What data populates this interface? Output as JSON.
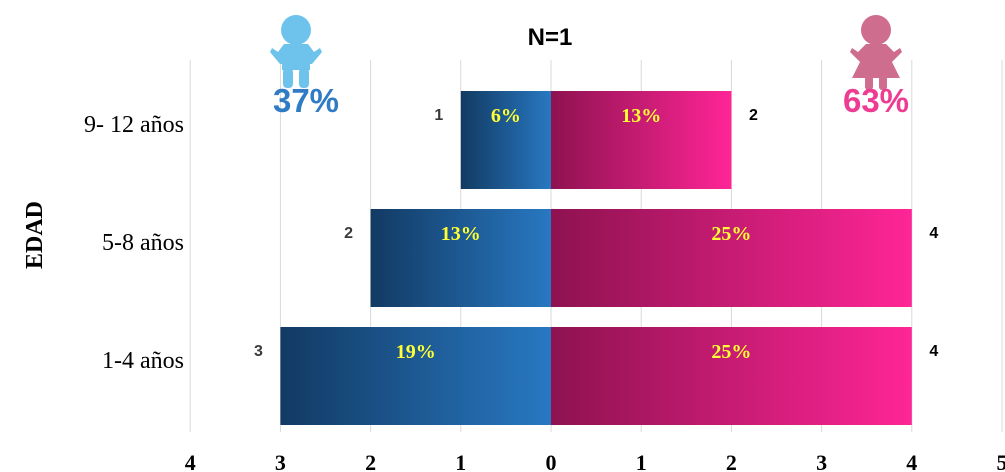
{
  "chart_data": {
    "type": "bar",
    "orientation": "horizontal-diverging",
    "title": "N=1",
    "ylabel": "EDAD",
    "xlim": [
      -4,
      5
    ],
    "x_ticks": [
      "4",
      "3",
      "2",
      "1",
      "0",
      "1",
      "2",
      "3",
      "4",
      "5"
    ],
    "grid": true,
    "categories": [
      "9- 12 años",
      "5-8 años",
      "1-4 años"
    ],
    "series": [
      {
        "color": "#1f5f9e",
        "values": [
          1,
          2,
          3
        ],
        "percent_labels": [
          "6%",
          "13%",
          "19%"
        ],
        "total_percent": "37%",
        "icon": "boy-icon"
      },
      {
        "color": "#e61f84",
        "values": [
          2,
          4,
          4
        ],
        "percent_labels": [
          "13%",
          "25%",
          "25%"
        ],
        "total_percent": "63%",
        "icon": "girl-icon"
      }
    ],
    "label_color": "#ffff33"
  }
}
